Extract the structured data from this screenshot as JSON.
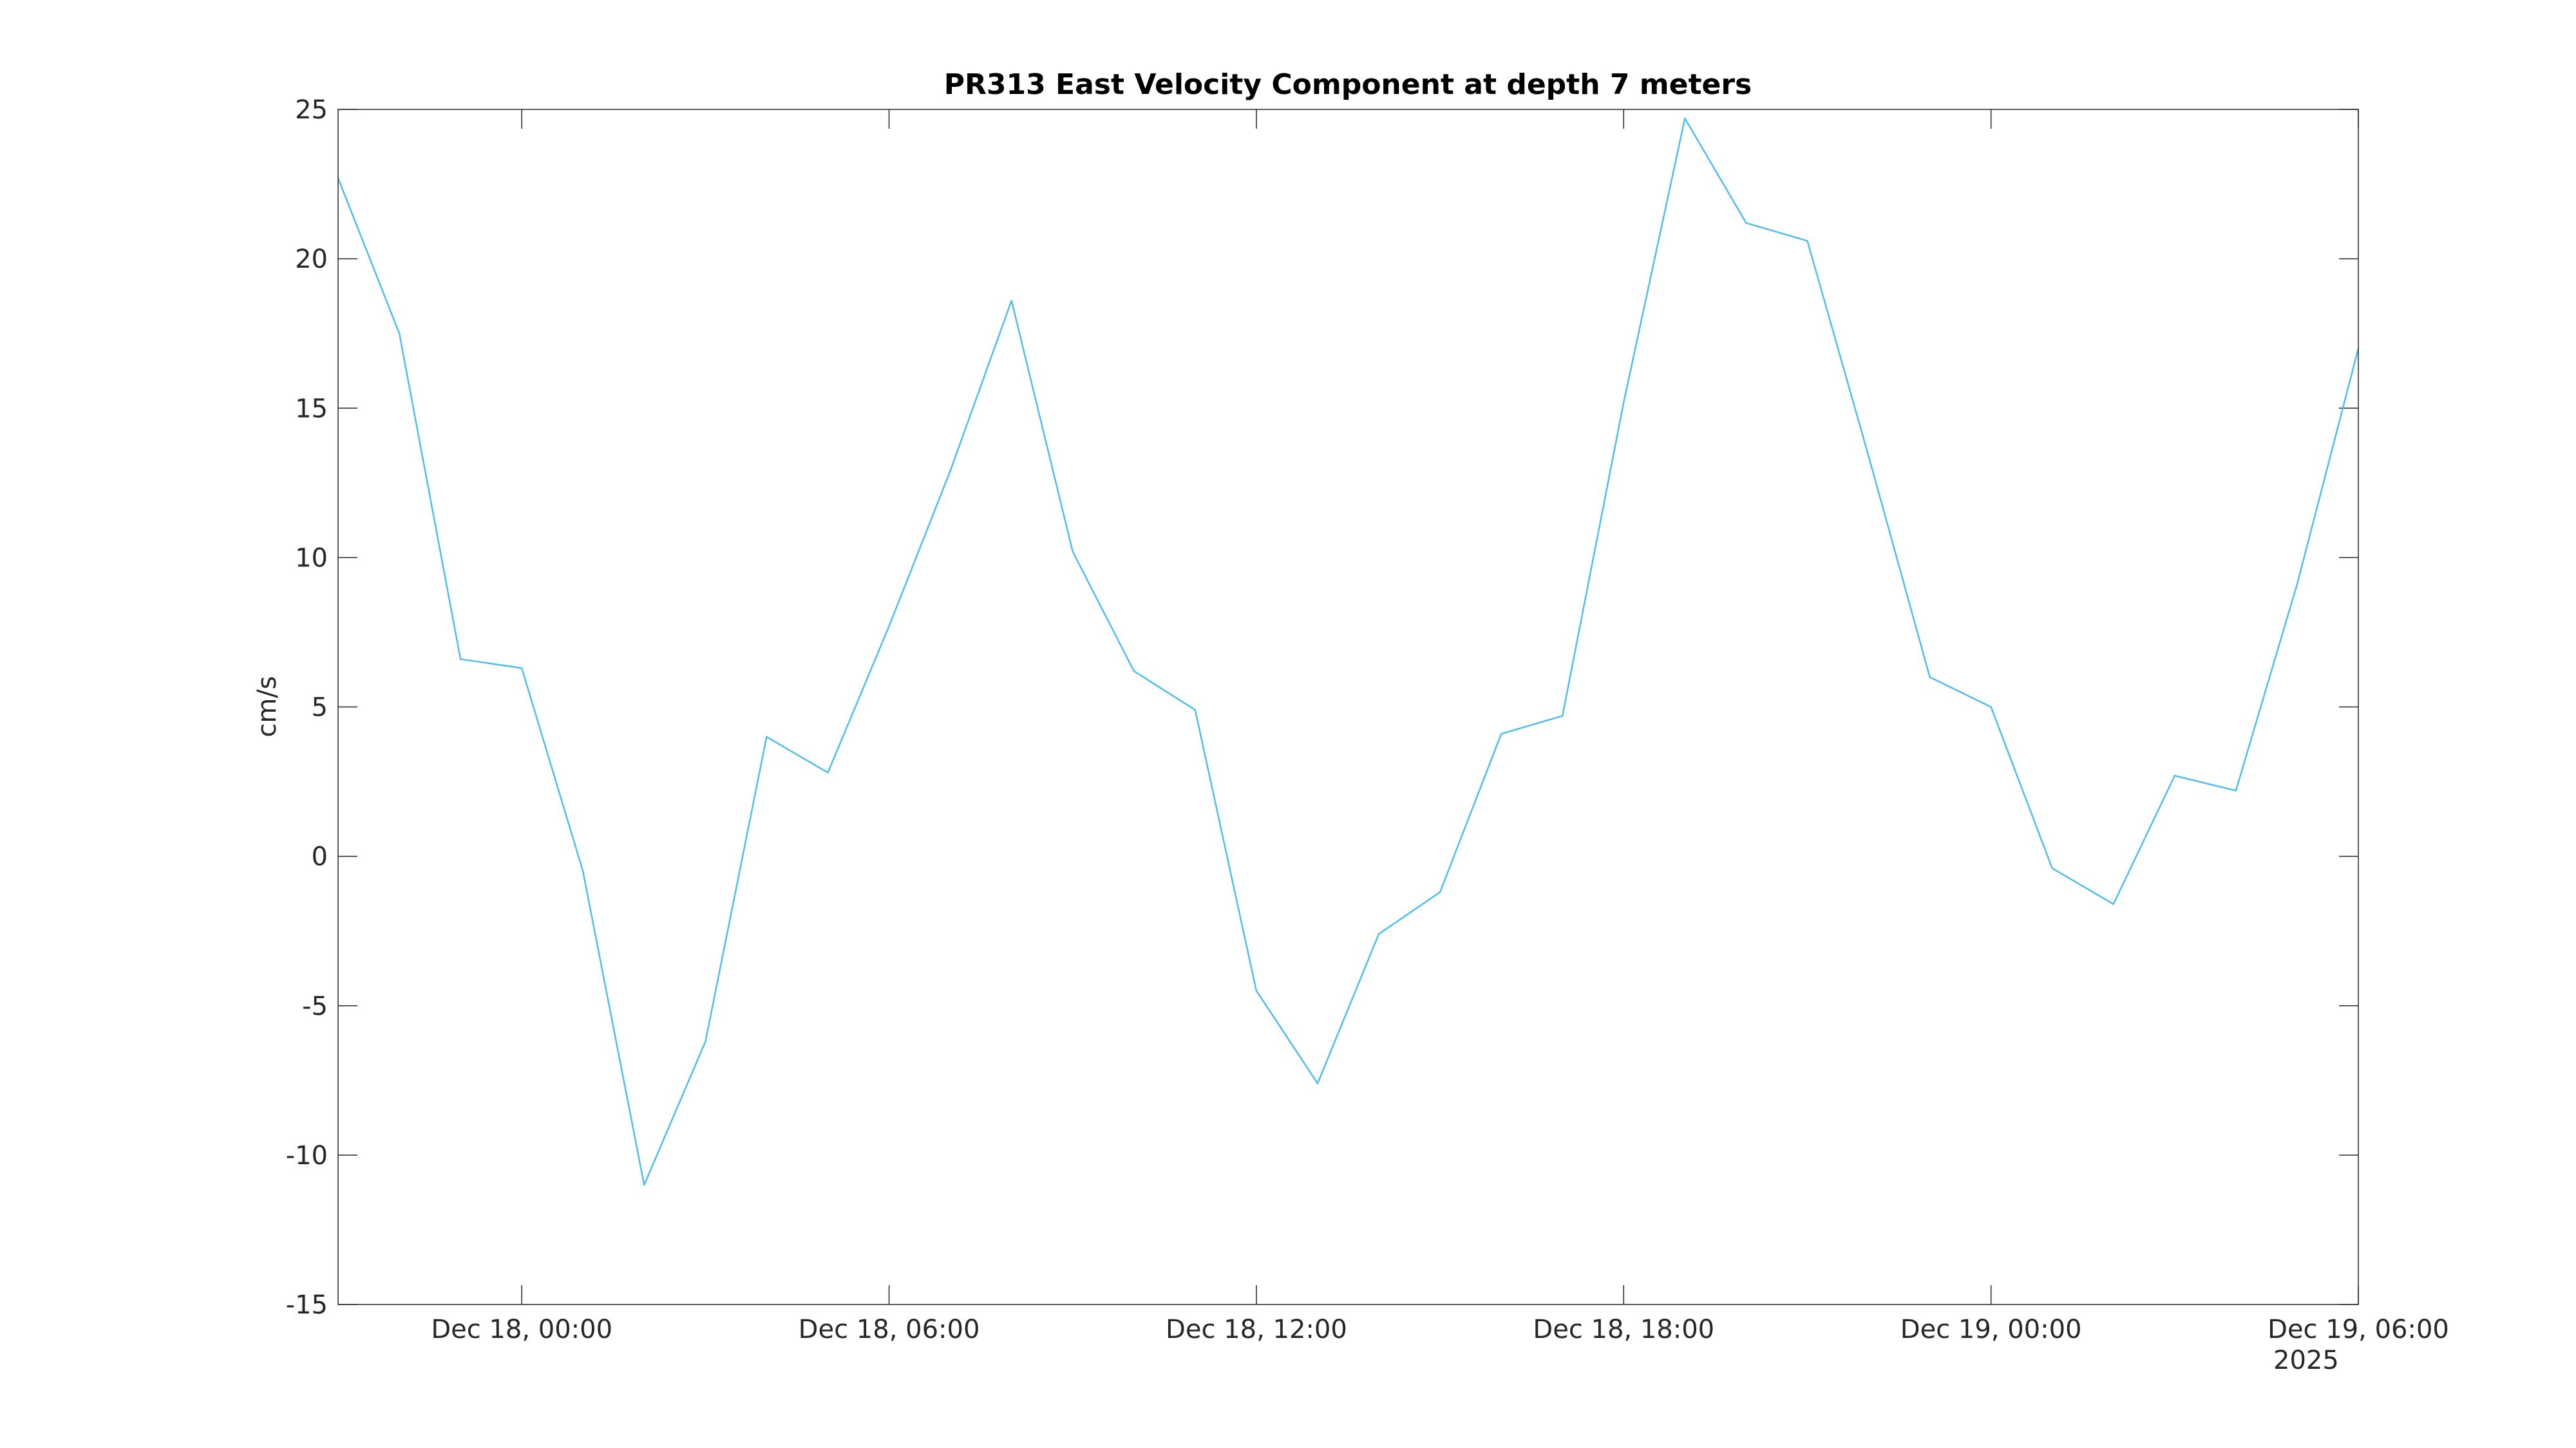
{
  "chart_data": {
    "type": "line",
    "title": "PR313 East Velocity Component at depth 7 meters",
    "xlabel": "",
    "ylabel": "cm/s",
    "x_year_label": "2025",
    "x_ticks": [
      {
        "value": "2025-12-18T00:00",
        "label": "Dec 18, 00:00"
      },
      {
        "value": "2025-12-18T06:00",
        "label": "Dec 18, 06:00"
      },
      {
        "value": "2025-12-18T12:00",
        "label": "Dec 18, 12:00"
      },
      {
        "value": "2025-12-18T18:00",
        "label": "Dec 18, 18:00"
      },
      {
        "value": "2025-12-19T00:00",
        "label": "Dec 19, 00:00"
      },
      {
        "value": "2025-12-19T06:00",
        "label": "Dec 19, 06:00"
      }
    ],
    "xlim": [
      "2025-12-17T21:00",
      "2025-12-19T06:00"
    ],
    "ylim": [
      -15,
      25
    ],
    "y_ticks": [
      -15,
      -10,
      -5,
      0,
      5,
      10,
      15,
      20,
      25
    ],
    "grid": false,
    "series": [
      {
        "color": "#4DBEEE",
        "x": [
          "2025-12-17T21:00",
          "2025-12-17T22:00",
          "2025-12-17T23:00",
          "2025-12-18T00:00",
          "2025-12-18T01:00",
          "2025-12-18T02:00",
          "2025-12-18T03:00",
          "2025-12-18T04:00",
          "2025-12-18T05:00",
          "2025-12-18T06:00",
          "2025-12-18T07:00",
          "2025-12-18T08:00",
          "2025-12-18T09:00",
          "2025-12-18T10:00",
          "2025-12-18T11:00",
          "2025-12-18T12:00",
          "2025-12-18T13:00",
          "2025-12-18T14:00",
          "2025-12-18T15:00",
          "2025-12-18T16:00",
          "2025-12-18T17:00",
          "2025-12-18T18:00",
          "2025-12-18T19:00",
          "2025-12-18T20:00",
          "2025-12-18T21:00",
          "2025-12-18T22:00",
          "2025-12-18T23:00",
          "2025-12-19T00:00",
          "2025-12-19T01:00",
          "2025-12-19T02:00",
          "2025-12-19T03:00",
          "2025-12-19T04:00",
          "2025-12-19T05:00",
          "2025-12-19T06:00"
        ],
        "y": [
          22.7,
          17.5,
          6.6,
          6.3,
          -0.5,
          -11.0,
          -6.2,
          4.0,
          2.8,
          7.7,
          12.9,
          18.6,
          10.2,
          6.2,
          4.9,
          -4.5,
          -7.6,
          -2.6,
          -1.2,
          4.1,
          4.7,
          15.2,
          24.7,
          21.2,
          20.6,
          13.4,
          6.0,
          5.0,
          -0.4,
          -1.6,
          2.7,
          2.2,
          9.1,
          17.0
        ]
      }
    ]
  }
}
